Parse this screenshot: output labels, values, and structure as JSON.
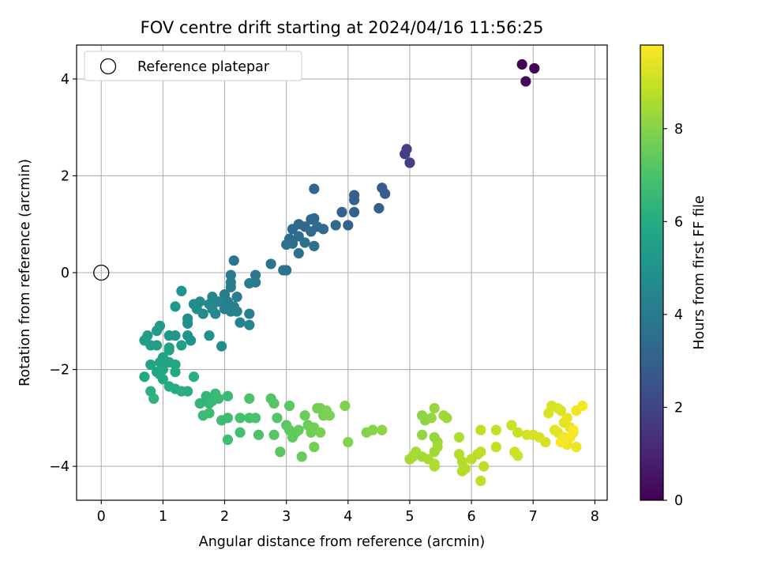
{
  "chart_data": {
    "type": "scatter",
    "title": "FOV centre drift starting at 2024/04/16 11:56:25",
    "xlabel": "Angular distance from reference (arcmin)",
    "ylabel": "Rotation from reference (arcmin)",
    "xlim": [
      -0.4,
      8.2
    ],
    "ylim": [
      -4.7,
      4.7
    ],
    "xticks": [
      0,
      1,
      2,
      3,
      4,
      5,
      6,
      7,
      8
    ],
    "yticks": [
      -4,
      -2,
      0,
      2,
      4
    ],
    "grid": true,
    "legend": {
      "placement": "top-left",
      "entries": [
        "Reference platepar"
      ]
    },
    "reference_point": {
      "x": 0,
      "y": 0
    },
    "colorbar": {
      "label": "Hours from first FF file",
      "colormap": "viridis",
      "range": [
        0,
        9.8
      ],
      "ticks": [
        0,
        2,
        4,
        6,
        8
      ]
    },
    "points": [
      [
        6.82,
        4.3,
        0.05
      ],
      [
        7.02,
        4.22,
        0.12
      ],
      [
        6.88,
        3.95,
        0.2
      ],
      [
        4.95,
        2.55,
        1.75
      ],
      [
        4.92,
        2.45,
        1.8
      ],
      [
        5.0,
        2.27,
        1.85
      ],
      [
        4.55,
        1.75,
        2.8
      ],
      [
        4.6,
        1.63,
        2.85
      ],
      [
        4.5,
        1.33,
        2.9
      ],
      [
        4.1,
        1.6,
        2.95
      ],
      [
        4.1,
        1.5,
        3.0
      ],
      [
        4.1,
        1.25,
        3.05
      ],
      [
        3.9,
        1.25,
        3.1
      ],
      [
        4.0,
        0.98,
        3.15
      ],
      [
        3.45,
        1.73,
        3.2
      ],
      [
        3.45,
        1.12,
        3.25
      ],
      [
        3.4,
        1.1,
        3.3
      ],
      [
        3.2,
        1.0,
        3.3
      ],
      [
        3.3,
        0.95,
        3.35
      ],
      [
        3.1,
        0.9,
        3.35
      ],
      [
        3.8,
        0.98,
        3.4
      ],
      [
        3.6,
        0.9,
        3.4
      ],
      [
        3.5,
        0.95,
        3.45
      ],
      [
        3.4,
        0.85,
        3.45
      ],
      [
        3.2,
        0.75,
        3.5
      ],
      [
        3.05,
        0.7,
        3.5
      ],
      [
        3.3,
        0.62,
        3.55
      ],
      [
        3.1,
        0.6,
        3.55
      ],
      [
        3.0,
        0.58,
        3.6
      ],
      [
        3.45,
        0.55,
        3.6
      ],
      [
        3.2,
        0.4,
        3.65
      ],
      [
        3.0,
        0.05,
        3.7
      ],
      [
        2.95,
        0.05,
        3.75
      ],
      [
        2.75,
        0.18,
        3.8
      ],
      [
        2.15,
        0.25,
        3.85
      ],
      [
        2.5,
        -0.05,
        3.9
      ],
      [
        2.1,
        -0.05,
        3.95
      ],
      [
        2.5,
        -0.2,
        4.0
      ],
      [
        2.4,
        -0.22,
        4.05
      ],
      [
        2.1,
        -0.2,
        4.1
      ],
      [
        2.1,
        -0.3,
        4.1
      ],
      [
        2.2,
        -0.5,
        4.15
      ],
      [
        2.0,
        -0.45,
        4.15
      ],
      [
        2.05,
        -0.6,
        4.2
      ],
      [
        2.15,
        -0.7,
        4.2
      ],
      [
        2.1,
        -0.8,
        4.25
      ],
      [
        2.0,
        -0.75,
        4.25
      ],
      [
        2.2,
        -0.8,
        4.3
      ],
      [
        2.4,
        -0.85,
        4.3
      ],
      [
        2.25,
        -1.03,
        4.35
      ],
      [
        2.4,
        -1.08,
        4.4
      ],
      [
        1.8,
        -0.5,
        4.45
      ],
      [
        1.9,
        -0.6,
        4.5
      ],
      [
        1.75,
        -0.65,
        4.55
      ],
      [
        1.8,
        -0.75,
        4.55
      ],
      [
        1.85,
        -0.85,
        4.6
      ],
      [
        1.6,
        -0.6,
        4.65
      ],
      [
        1.5,
        -0.65,
        4.65
      ],
      [
        1.55,
        -0.75,
        4.7
      ],
      [
        1.65,
        -0.85,
        4.7
      ],
      [
        1.4,
        -0.95,
        4.75
      ],
      [
        1.4,
        -1.05,
        4.8
      ],
      [
        1.95,
        -1.52,
        4.85
      ],
      [
        1.75,
        -1.3,
        4.9
      ],
      [
        1.4,
        -1.3,
        4.95
      ],
      [
        1.45,
        -1.4,
        5.0
      ],
      [
        1.3,
        -0.38,
        5.05
      ],
      [
        1.2,
        -0.7,
        5.1
      ],
      [
        1.1,
        -1.3,
        5.15
      ],
      [
        1.2,
        -1.3,
        5.2
      ],
      [
        0.95,
        -1.1,
        5.25
      ],
      [
        0.9,
        -1.2,
        5.3
      ],
      [
        0.75,
        -1.3,
        5.35
      ],
      [
        0.7,
        -1.4,
        5.4
      ],
      [
        0.8,
        -1.5,
        5.45
      ],
      [
        0.9,
        -1.5,
        5.45
      ],
      [
        1.1,
        -1.55,
        5.5
      ],
      [
        1.3,
        -1.5,
        5.55
      ],
      [
        1.1,
        -1.6,
        5.6
      ],
      [
        1.0,
        -1.75,
        5.65
      ],
      [
        0.8,
        -1.9,
        5.7
      ],
      [
        0.95,
        -1.85,
        5.7
      ],
      [
        1.0,
        -2.0,
        5.75
      ],
      [
        1.1,
        -1.85,
        5.75
      ],
      [
        1.2,
        -1.9,
        5.8
      ],
      [
        0.95,
        -2.1,
        5.85
      ],
      [
        0.9,
        -2.05,
        5.85
      ],
      [
        1.2,
        -2.05,
        5.9
      ],
      [
        0.7,
        -2.15,
        5.9
      ],
      [
        1.0,
        -2.2,
        5.95
      ],
      [
        1.1,
        -2.35,
        6.0
      ],
      [
        1.2,
        -2.4,
        6.05
      ],
      [
        1.3,
        -2.45,
        6.1
      ],
      [
        1.4,
        -2.45,
        6.1
      ],
      [
        1.5,
        -2.15,
        6.15
      ],
      [
        0.8,
        -2.45,
        6.2
      ],
      [
        0.85,
        -2.6,
        6.25
      ],
      [
        1.6,
        -2.7,
        6.35
      ],
      [
        1.7,
        -2.55,
        6.4
      ],
      [
        1.75,
        -2.7,
        6.45
      ],
      [
        1.8,
        -2.65,
        6.5
      ],
      [
        1.85,
        -2.5,
        6.55
      ],
      [
        1.9,
        -2.6,
        6.6
      ],
      [
        2.05,
        -2.55,
        6.6
      ],
      [
        1.65,
        -2.95,
        6.65
      ],
      [
        1.75,
        -2.9,
        6.7
      ],
      [
        1.95,
        -3.05,
        6.75
      ],
      [
        2.05,
        -3.0,
        6.75
      ],
      [
        2.05,
        -3.45,
        6.8
      ],
      [
        2.25,
        -3.3,
        6.85
      ],
      [
        2.25,
        -3.0,
        6.85
      ],
      [
        2.4,
        -3.0,
        6.9
      ],
      [
        2.5,
        -3.0,
        6.95
      ],
      [
        2.4,
        -2.6,
        7.0
      ],
      [
        2.55,
        -3.35,
        7.05
      ],
      [
        2.75,
        -2.6,
        7.1
      ],
      [
        2.8,
        -2.7,
        7.15
      ],
      [
        2.85,
        -3.0,
        7.15
      ],
      [
        2.8,
        -3.35,
        7.2
      ],
      [
        2.9,
        -3.7,
        7.25
      ],
      [
        3.05,
        -2.75,
        7.3
      ],
      [
        3.0,
        -3.15,
        7.3
      ],
      [
        3.05,
        -3.25,
        7.35
      ],
      [
        3.1,
        -3.4,
        7.35
      ],
      [
        3.15,
        -3.3,
        7.4
      ],
      [
        3.2,
        -3.25,
        7.45
      ],
      [
        3.25,
        -3.8,
        7.5
      ],
      [
        3.3,
        -2.95,
        7.55
      ],
      [
        3.35,
        -3.15,
        7.55
      ],
      [
        3.4,
        -3.3,
        7.6
      ],
      [
        3.45,
        -3.2,
        7.65
      ],
      [
        3.45,
        -3.6,
        7.7
      ],
      [
        3.5,
        -2.8,
        7.7
      ],
      [
        3.55,
        -2.8,
        7.75
      ],
      [
        3.6,
        -2.95,
        7.75
      ],
      [
        3.65,
        -2.9,
        7.8
      ],
      [
        3.55,
        -3.3,
        7.8
      ],
      [
        3.7,
        -2.95,
        7.85
      ],
      [
        3.65,
        -2.85,
        7.85
      ],
      [
        3.95,
        -2.75,
        7.9
      ],
      [
        4.0,
        -3.5,
        7.95
      ],
      [
        4.3,
        -3.3,
        8.0
      ],
      [
        4.4,
        -3.25,
        8.05
      ],
      [
        4.55,
        -3.25,
        8.1
      ],
      [
        5.2,
        -2.95,
        8.15
      ],
      [
        5.25,
        -3.05,
        8.15
      ],
      [
        5.2,
        -3.35,
        8.2
      ],
      [
        5.4,
        -2.8,
        8.25
      ],
      [
        5.35,
        -3.0,
        8.25
      ],
      [
        5.4,
        -3.4,
        8.3
      ],
      [
        5.45,
        -3.5,
        8.3
      ],
      [
        5.55,
        -2.95,
        8.35
      ],
      [
        5.6,
        -3.0,
        8.35
      ],
      [
        5.45,
        -3.6,
        8.4
      ],
      [
        5.4,
        -3.7,
        8.4
      ],
      [
        5.1,
        -3.7,
        8.45
      ],
      [
        5.2,
        -3.8,
        8.45
      ],
      [
        5.05,
        -3.8,
        8.5
      ],
      [
        5.0,
        -3.85,
        8.5
      ],
      [
        5.3,
        -3.85,
        8.55
      ],
      [
        5.4,
        -3.95,
        8.55
      ],
      [
        5.4,
        -4.0,
        8.6
      ],
      [
        5.8,
        -3.4,
        8.6
      ],
      [
        5.8,
        -3.75,
        8.65
      ],
      [
        5.85,
        -3.9,
        8.65
      ],
      [
        5.9,
        -4.05,
        8.7
      ],
      [
        5.85,
        -4.1,
        8.7
      ],
      [
        6.0,
        -3.85,
        8.75
      ],
      [
        6.1,
        -3.75,
        8.75
      ],
      [
        6.2,
        -4.0,
        8.8
      ],
      [
        6.15,
        -4.3,
        8.8
      ],
      [
        6.15,
        -3.25,
        8.85
      ],
      [
        6.15,
        -3.7,
        8.85
      ],
      [
        6.4,
        -3.25,
        8.9
      ],
      [
        6.4,
        -3.6,
        8.9
      ],
      [
        6.65,
        -3.15,
        9.0
      ],
      [
        6.75,
        -3.3,
        9.05
      ],
      [
        6.7,
        -3.7,
        9.05
      ],
      [
        6.75,
        -3.78,
        9.1
      ],
      [
        6.9,
        -3.35,
        9.15
      ],
      [
        7.0,
        -3.35,
        9.15
      ],
      [
        7.1,
        -3.4,
        9.2
      ],
      [
        7.2,
        -3.5,
        9.2
      ],
      [
        7.25,
        -2.9,
        9.25
      ],
      [
        7.3,
        -2.75,
        9.25
      ],
      [
        7.4,
        -2.8,
        9.3
      ],
      [
        7.45,
        -2.85,
        9.3
      ],
      [
        7.35,
        -3.25,
        9.35
      ],
      [
        7.4,
        -3.3,
        9.4
      ],
      [
        7.5,
        -3.1,
        9.4
      ],
      [
        7.55,
        -3.0,
        9.45
      ],
      [
        7.6,
        -3.2,
        9.45
      ],
      [
        7.65,
        -3.3,
        9.5
      ],
      [
        7.55,
        -3.55,
        9.55
      ],
      [
        7.7,
        -3.6,
        9.55
      ],
      [
        7.7,
        -2.85,
        9.6
      ],
      [
        7.8,
        -2.75,
        9.65
      ],
      [
        7.5,
        -3.4,
        9.65
      ],
      [
        7.45,
        -3.5,
        9.7
      ],
      [
        7.6,
        -3.4,
        9.7
      ],
      [
        7.65,
        -3.25,
        9.75
      ]
    ]
  }
}
